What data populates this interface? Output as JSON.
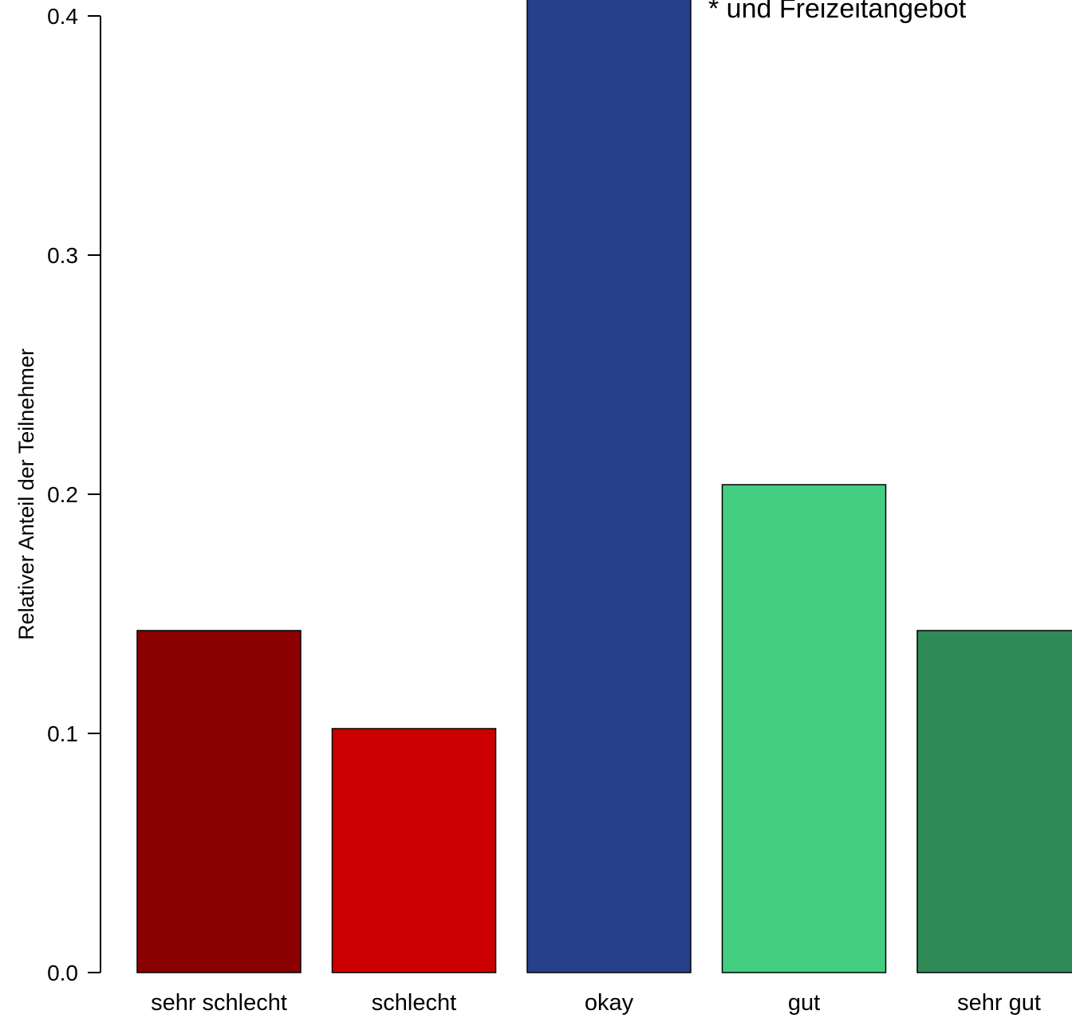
{
  "chart_data": {
    "type": "bar",
    "categories": [
      "sehr schlecht",
      "schlecht",
      "okay",
      "gut",
      "sehr gut"
    ],
    "values": [
      0.143,
      0.102,
      0.42,
      0.204,
      0.143
    ],
    "colors": [
      "#8b0000",
      "#cc0000",
      "#27408b",
      "#43cd80",
      "#2e8b57"
    ],
    "ylabel": "Relativer Anteil der Teilnehmer",
    "yticks": [
      "0.0",
      "0.1",
      "0.2",
      "0.3",
      "0.4"
    ],
    "ylim": [
      0,
      0.42
    ],
    "annotation": "* und Freizeitangebot",
    "grid": false,
    "legend": "none"
  }
}
